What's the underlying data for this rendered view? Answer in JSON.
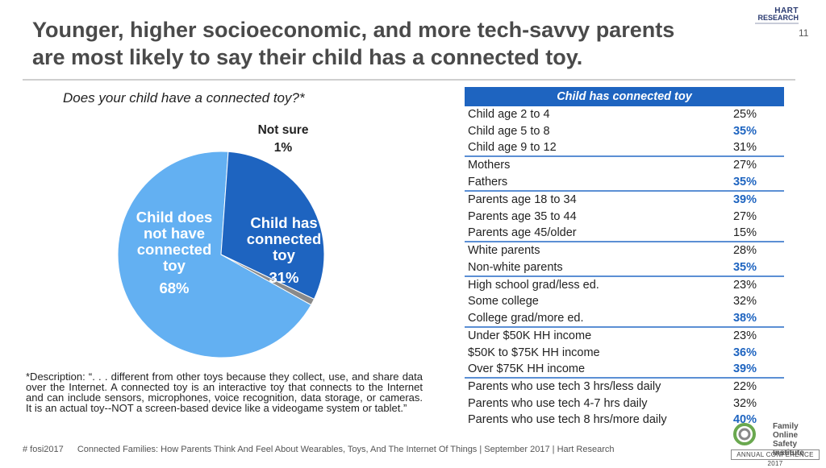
{
  "header": {
    "title_line1": "Younger, higher socioeconomic, and more tech-savvy parents",
    "title_line2": "are most likely to say their child has a connected toy.",
    "page_number": "11",
    "logo_top": "HART",
    "logo_bottom": "RESEARCH"
  },
  "pie": {
    "question": "Does your child have a connected toy?*",
    "colors": {
      "not_have": "#63b0f2",
      "has": "#1e64c0",
      "not_sure": "#8a8a8a"
    }
  },
  "chart_data": [
    {
      "type": "pie",
      "title": "Does your child have a connected toy?*",
      "slices": [
        {
          "label_lines": [
            "Child does",
            "not have",
            "connected",
            "toy"
          ],
          "value_label": "68%",
          "value": 68
        },
        {
          "label_lines": [
            "Child has",
            "connected",
            "toy"
          ],
          "value_label": "31%",
          "value": 31
        },
        {
          "label_lines": [
            "Not sure"
          ],
          "value_label": "1%",
          "value": 1
        }
      ]
    },
    {
      "type": "table",
      "header": "Child has connected toy",
      "rows": [
        {
          "label": "Child age 2 to 4",
          "value": "25%",
          "highlight": false,
          "group_end": false
        },
        {
          "label": "Child age 5 to 8",
          "value": "35%",
          "highlight": true,
          "group_end": false
        },
        {
          "label": "Child age 9 to 12",
          "value": "31%",
          "highlight": false,
          "group_end": true
        },
        {
          "label": "Mothers",
          "value": "27%",
          "highlight": false,
          "group_end": false
        },
        {
          "label": "Fathers",
          "value": "35%",
          "highlight": true,
          "group_end": true
        },
        {
          "label": "Parents age 18 to 34",
          "value": "39%",
          "highlight": true,
          "group_end": false
        },
        {
          "label": "Parents age 35 to 44",
          "value": "27%",
          "highlight": false,
          "group_end": false
        },
        {
          "label": "Parents age 45/older",
          "value": "15%",
          "highlight": false,
          "group_end": true
        },
        {
          "label": "White parents",
          "value": "28%",
          "highlight": false,
          "group_end": false
        },
        {
          "label": "Non-white parents",
          "value": "35%",
          "highlight": true,
          "group_end": true
        },
        {
          "label": "High school grad/less ed.",
          "value": "23%",
          "highlight": false,
          "group_end": false
        },
        {
          "label": "Some college",
          "value": "32%",
          "highlight": false,
          "group_end": false
        },
        {
          "label": "College grad/more ed.",
          "value": "38%",
          "highlight": true,
          "group_end": true
        },
        {
          "label": "Under $50K HH income",
          "value": "23%",
          "highlight": false,
          "group_end": false
        },
        {
          "label": "$50K to $75K HH income",
          "value": "36%",
          "highlight": true,
          "group_end": false
        },
        {
          "label": "Over $75K HH income",
          "value": "39%",
          "highlight": true,
          "group_end": true
        },
        {
          "label": "Parents who use tech 3 hrs/less daily",
          "value": "22%",
          "highlight": false,
          "group_end": false
        },
        {
          "label": "Parents who use tech  4-7 hrs daily",
          "value": "32%",
          "highlight": false,
          "group_end": false
        },
        {
          "label": "Parents who use tech 8 hrs/more daily",
          "value": "40%",
          "highlight": true,
          "group_end": false
        }
      ]
    }
  ],
  "footnote": "*Description:  “. . . different from other toys because they collect, use, and share data over the Internet.  A connected toy is an interactive toy that connects to the Internet and can include sensors, microphones, voice recognition, data storage, or cameras.  It is an actual toy--NOT a screen-based device like a videogame system or tablet.”",
  "footer": {
    "hashtag": "# fosi2017",
    "citation": "Connected Families: How Parents Think And Feel About Wearables, Toys, And The Internet Of Things | September 2017 | Hart Research",
    "org_line1": "Family",
    "org_line2": "Online Safety",
    "org_line3": "Institute",
    "conference": "ANNUAL CONFERENCE 2017"
  }
}
